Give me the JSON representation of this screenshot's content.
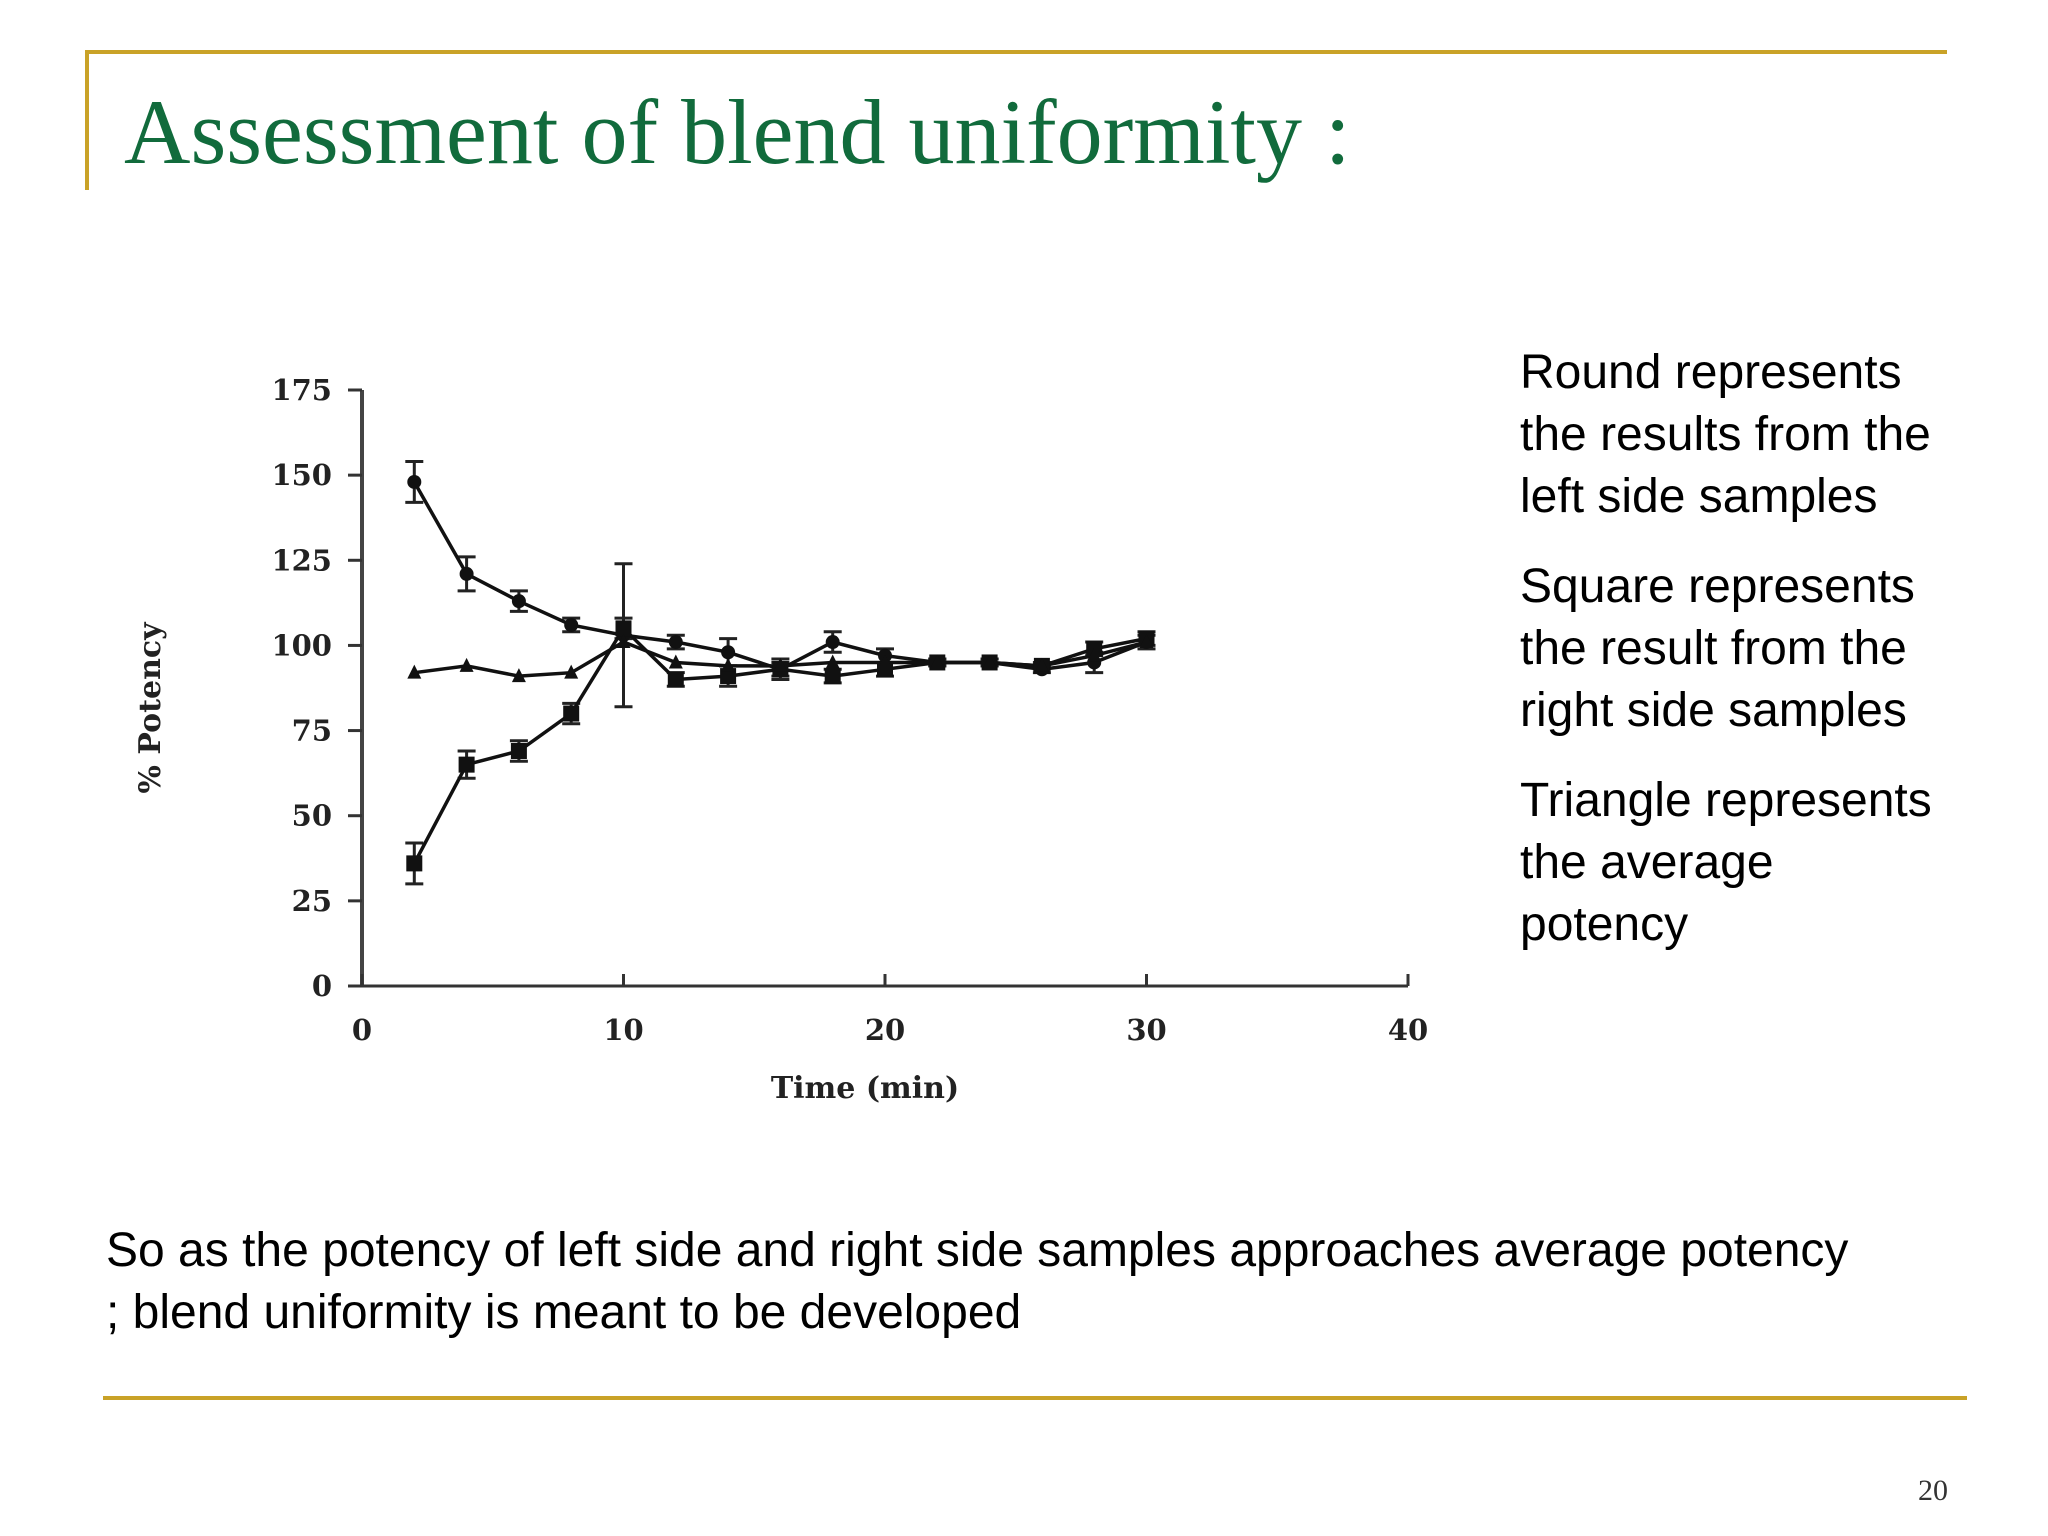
{
  "slide": {
    "title": "Assessment of blend uniformity :",
    "legend_notes": [
      "Round represents the results from the left side samples",
      "Square represents the result from the right side samples",
      "Triangle represents the average potency"
    ],
    "summary": "So as the potency of left side and right side samples approaches average potency ; blend uniformity is meant to be developed",
    "page_number": "20",
    "accent_color": "#c9a227",
    "title_color": "#116b3c"
  },
  "chart_data": {
    "type": "line",
    "title": "",
    "xlabel": "Time (min)",
    "ylabel": "% Potency",
    "xlim": [
      0,
      40
    ],
    "ylim": [
      0,
      175
    ],
    "x_ticks": [
      0,
      10,
      20,
      30,
      40
    ],
    "y_ticks": [
      0,
      25,
      50,
      75,
      100,
      125,
      150,
      175
    ],
    "grid": false,
    "x": [
      2,
      4,
      6,
      8,
      10,
      12,
      14,
      16,
      18,
      20,
      22,
      24,
      26,
      28,
      30
    ],
    "series": [
      {
        "marker": "round",
        "values": [
          148,
          121,
          113,
          106,
          103,
          101,
          98,
          93,
          101,
          97,
          95,
          95,
          93,
          95,
          101
        ],
        "error": [
          6,
          5,
          3,
          2,
          21,
          2,
          4,
          3,
          3,
          2,
          1,
          1,
          1,
          3,
          2
        ]
      },
      {
        "marker": "square",
        "values": [
          36,
          65,
          69,
          80,
          105,
          90,
          91,
          93,
          91,
          93,
          95,
          95,
          94,
          99,
          102
        ],
        "error": [
          6,
          4,
          3,
          3,
          3,
          2,
          3,
          2,
          2,
          2,
          1,
          1,
          1,
          2,
          2
        ]
      },
      {
        "marker": "triangle",
        "values": [
          92,
          94,
          91,
          92,
          101,
          95,
          94,
          94,
          95,
          95,
          95,
          95,
          94,
          97,
          101
        ],
        "error": [
          0,
          0,
          0,
          0,
          0,
          0,
          0,
          0,
          0,
          0,
          0,
          0,
          0,
          0,
          0
        ]
      }
    ]
  }
}
